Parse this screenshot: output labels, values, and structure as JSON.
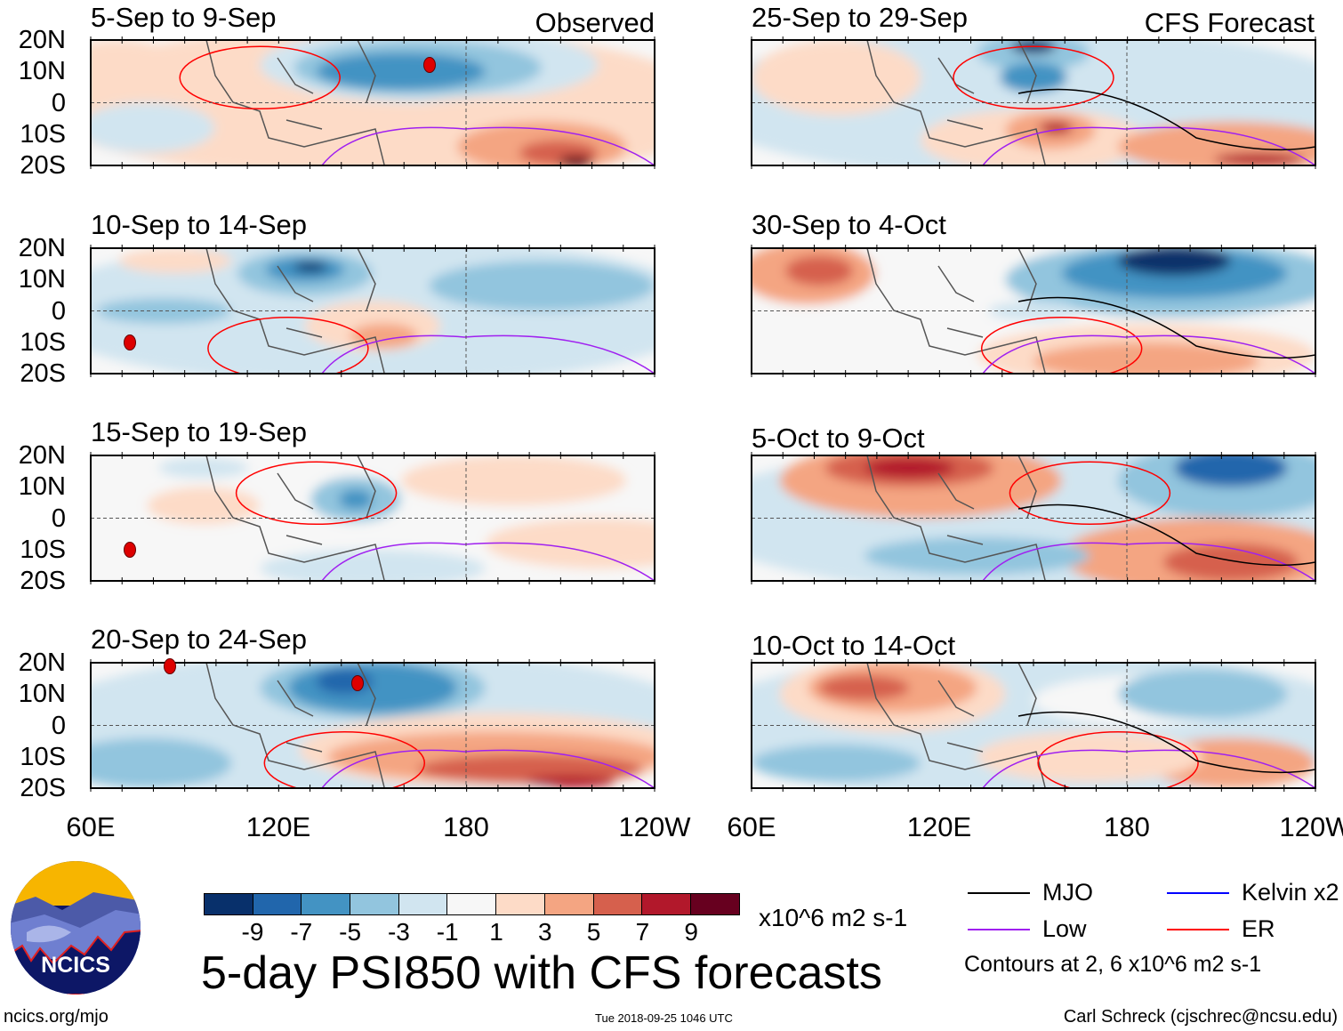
{
  "left_column": {
    "label": "Observed",
    "panels": [
      {
        "title": "5-Sep to 9-Sep"
      },
      {
        "title": "10-Sep to 14-Sep"
      },
      {
        "title": "15-Sep to 19-Sep"
      },
      {
        "title": "20-Sep to 24-Sep"
      }
    ]
  },
  "right_column": {
    "label": "CFS Forecast",
    "panels": [
      {
        "title": "25-Sep to 29-Sep"
      },
      {
        "title": "30-Sep to 4-Oct"
      },
      {
        "title": "5-Oct to 9-Oct"
      },
      {
        "title": "10-Oct to 14-Oct"
      }
    ]
  },
  "lat_labels": [
    "20N",
    "10N",
    "0",
    "10S",
    "20S"
  ],
  "lon_labels": [
    "60E",
    "120E",
    "180",
    "120W"
  ],
  "colorbar": {
    "colors": [
      "#08306b",
      "#2166ac",
      "#4393c3",
      "#92c5de",
      "#d1e5f0",
      "#f7f7f7",
      "#fddbc7",
      "#f4a582",
      "#d6604d",
      "#b2182b",
      "#67001f"
    ],
    "labels": [
      "-9",
      "-7",
      "-5",
      "-3",
      "-1",
      "1",
      "3",
      "5",
      "7",
      "9"
    ],
    "units": "x10^6 m2 s-1"
  },
  "legend": {
    "items": [
      {
        "label": "MJO",
        "color": "#000000"
      },
      {
        "label": "Kelvin x2",
        "color": "#0000ff"
      },
      {
        "label": "Low",
        "color": "#a020f0"
      },
      {
        "label": "ER",
        "color": "#ff0000"
      }
    ],
    "contours_note": "Contours at 2, 6 x10^6 m2 s-1"
  },
  "logo_text": "NCICS",
  "title": "5-day PSI850 with CFS forecasts",
  "footer": {
    "url": "ncics.org/mjo",
    "timestamp": "Tue 2018-09-25 1046 UTC",
    "author": "Carl Schreck (cjschrec@ncsu.edu)"
  }
}
